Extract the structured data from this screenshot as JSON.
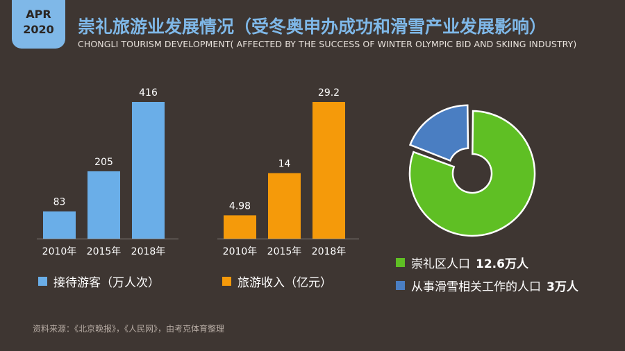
{
  "badge": {
    "month": "APR",
    "year": "2020"
  },
  "header": {
    "title": "崇礼旅游业发展情况（受冬奥申办成功和滑雪产业发展影响）",
    "subtitle": "CHONGLI TOURISM DEVELOPMENT( AFFECTED BY THE SUCCESS OF WINTER OLYMPIC BID AND SKIING INDUSTRY)"
  },
  "chart_data": [
    {
      "type": "bar",
      "categories": [
        "2010年",
        "2015年",
        "2018年"
      ],
      "series": [
        {
          "name": "接待游客（万人次）",
          "values": [
            83,
            205,
            416
          ],
          "labels": [
            "83",
            "205",
            "416"
          ],
          "color": "#6aaee8"
        }
      ],
      "ylim": [
        0,
        416
      ]
    },
    {
      "type": "bar",
      "categories": [
        "2010年",
        "2015年",
        "2018年"
      ],
      "series": [
        {
          "name": "旅游收入（亿元）",
          "values": [
            4.98,
            14,
            29.2
          ],
          "labels": [
            "4.98",
            "14",
            "29.2"
          ],
          "color": "#f59a0a"
        }
      ],
      "ylim": [
        0,
        29.2
      ]
    },
    {
      "type": "pie",
      "donut": true,
      "slices": [
        {
          "label": "崇礼区人口",
          "value": 12.6,
          "display_value": "12.6万人",
          "color": "#5fbf24"
        },
        {
          "label": "从事滑雪相关工作的人口",
          "value": 3,
          "display_value": "3万人",
          "color": "#4a7ec2"
        }
      ]
    }
  ],
  "legends": {
    "visitors": "接待游客（万人次）",
    "revenue": "旅游收入（亿元）",
    "pop_label": "崇礼区人口",
    "pop_value": "12.6万人",
    "ski_label": "从事滑雪相关工作的人口",
    "ski_value": "3万人"
  },
  "source": "资料来源：《北京晚报》，《人民网》，由考克体育整理"
}
